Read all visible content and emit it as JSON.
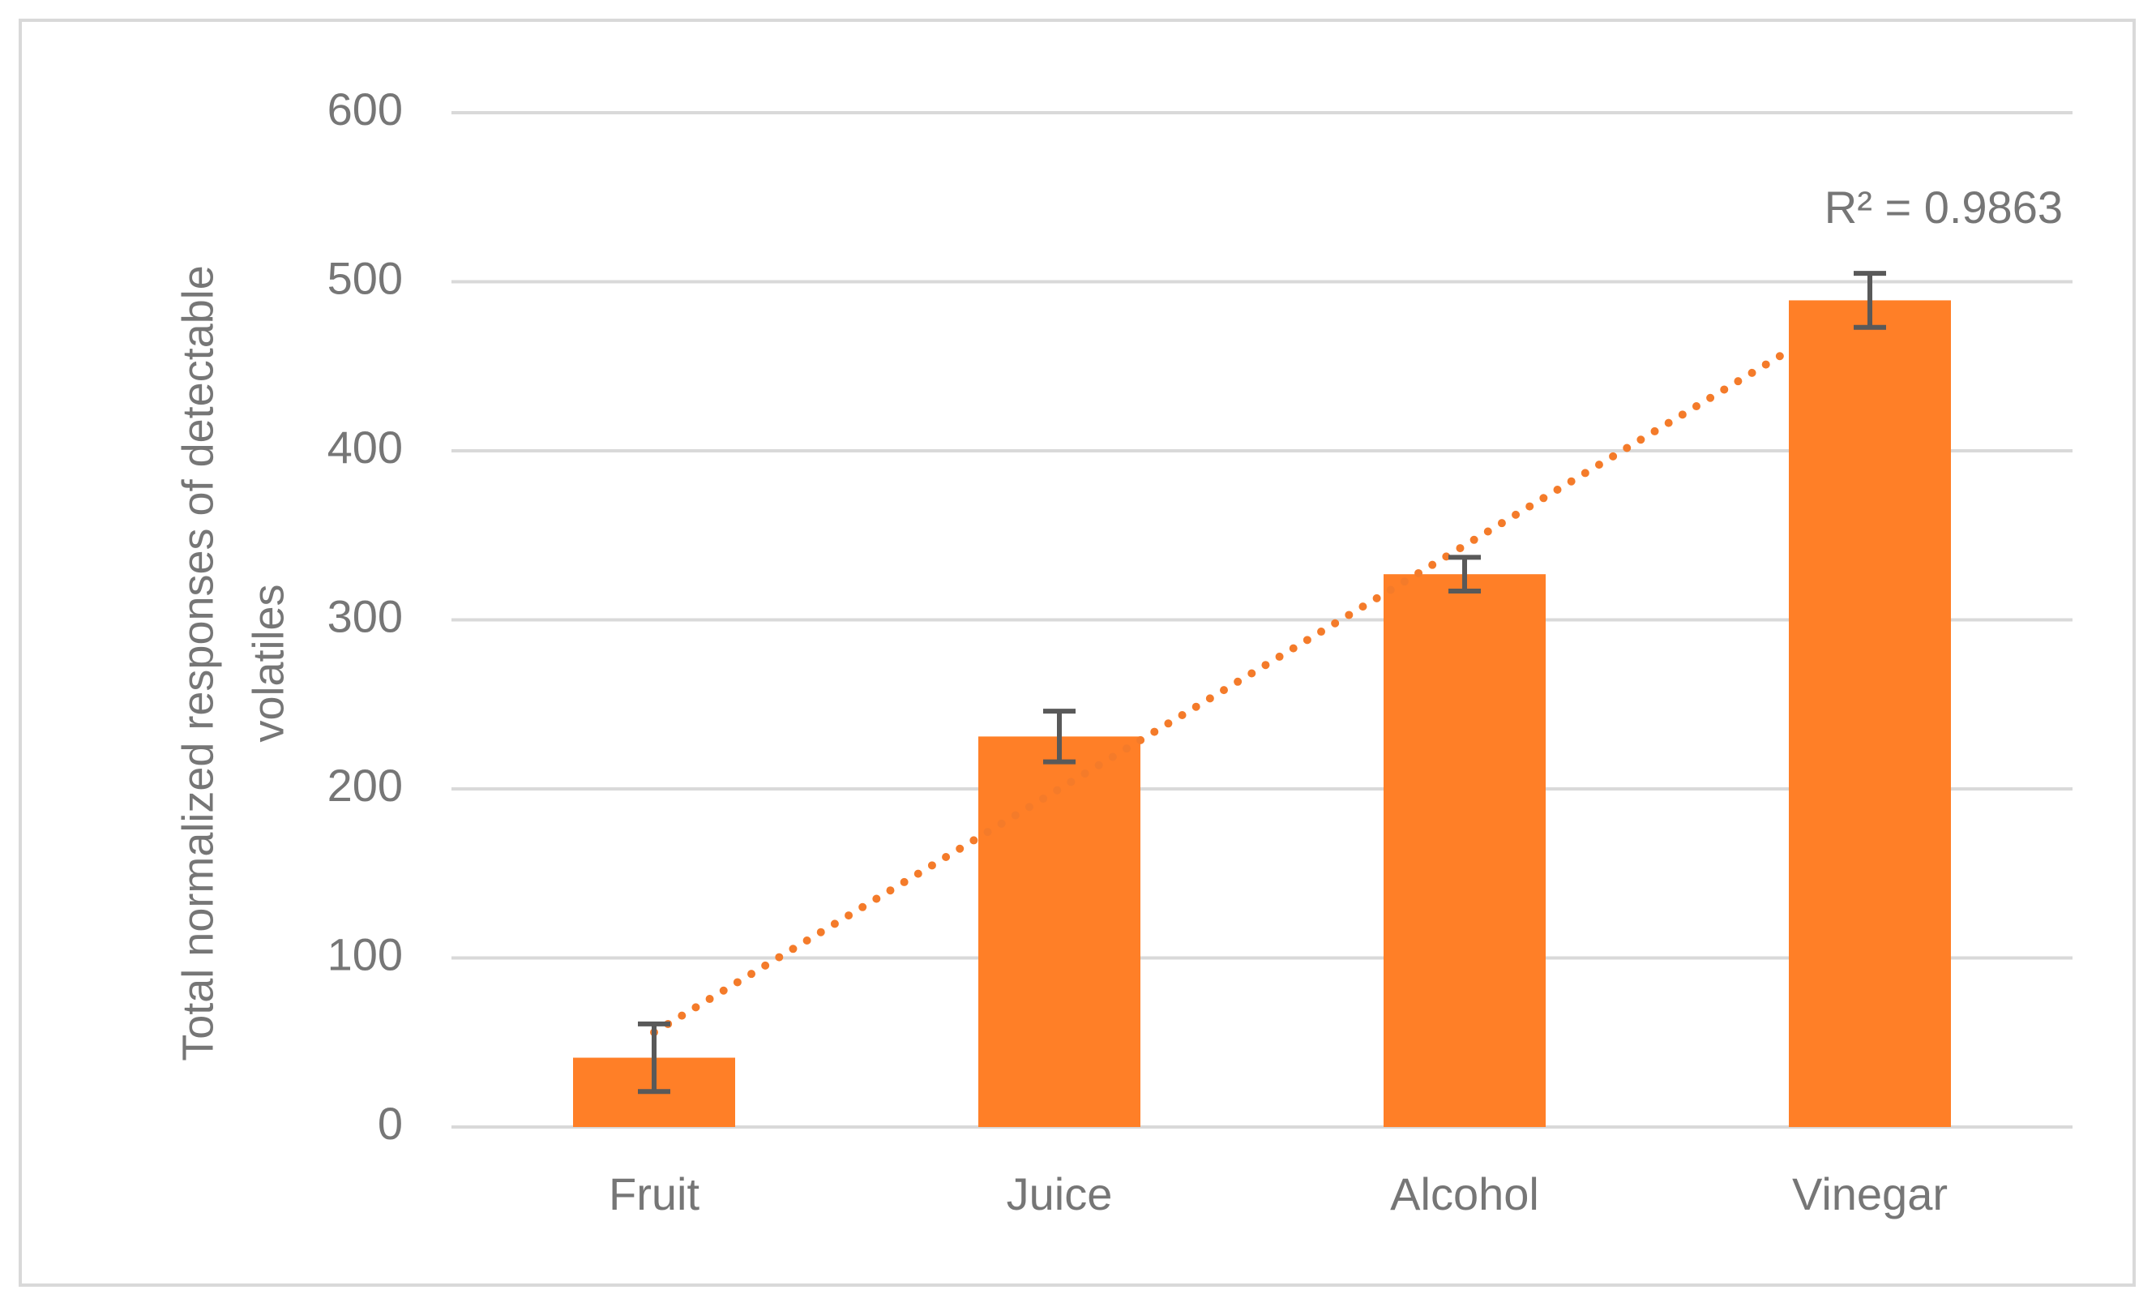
{
  "chart_data": {
    "type": "bar",
    "ylabel": [
      "Total  normalized responses of detectable",
      "volatiles"
    ],
    "categories": [
      "Fruit",
      "Juice",
      "Alcohol",
      "Vinegar"
    ],
    "values": [
      41,
      231,
      327,
      489
    ],
    "errors": [
      20,
      15,
      10,
      16
    ],
    "color": "#ff7f27",
    "error_color": "#595959",
    "trendline": {
      "type": "linear",
      "style": "dotted",
      "color": "#f47b2a",
      "annotation": "R² = 0.9863"
    },
    "ylim": [
      0,
      600
    ],
    "yticks": [
      0,
      100,
      200,
      300,
      400,
      500,
      600
    ],
    "grid": true
  }
}
